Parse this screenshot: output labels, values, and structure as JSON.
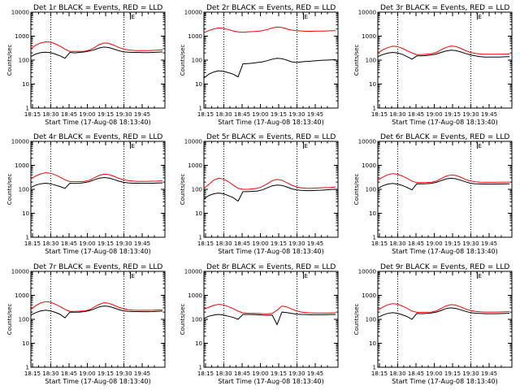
{
  "chart_data": [
    {
      "type": "line",
      "title": "Det 1r BLACK = Events, RED = LLD",
      "xlabel": "Start Time (17-Aug-08 18:13:40)",
      "ylabel": "Counts/sec",
      "yscale": "log",
      "ylim": [
        1,
        10000
      ],
      "x_ticks": [
        "18:15",
        "18:30",
        "18:45",
        "19:00",
        "19:15",
        "19:30",
        "19:45"
      ],
      "y_ticks": [
        "1",
        "10",
        "100",
        "1000",
        "10000"
      ],
      "markers": [
        "18:30",
        "19:30"
      ],
      "flag_label": "E",
      "x": [
        0,
        4,
        8,
        12,
        16,
        20,
        24,
        28,
        32,
        36,
        40,
        44,
        48,
        52,
        56,
        60,
        64,
        68,
        72,
        76,
        80,
        84,
        88,
        92,
        96,
        100,
        104,
        108
      ],
      "series": [
        {
          "name": "Events",
          "color": "#000000",
          "values": [
            140,
            180,
            205,
            215,
            205,
            180,
            150,
            120,
            210,
            200,
            210,
            220,
            240,
            270,
            320,
            350,
            335,
            290,
            250,
            220,
            215,
            210,
            210,
            205,
            205,
            210,
            215,
            220
          ]
        },
        {
          "name": "LLD",
          "color": "#ff0000",
          "values": [
            300,
            420,
            520,
            580,
            560,
            480,
            380,
            290,
            230,
            230,
            230,
            235,
            260,
            330,
            440,
            520,
            500,
            420,
            340,
            290,
            265,
            255,
            250,
            250,
            250,
            255,
            260,
            265
          ]
        }
      ]
    },
    {
      "type": "line",
      "title": "Det 2r BLACK = Events, RED = LLD",
      "xlabel": "Start Time (17-Aug-08 18:13:40)",
      "ylabel": "Counts/sec",
      "yscale": "log",
      "ylim": [
        1,
        10000
      ],
      "x_ticks": [
        "18:15",
        "18:30",
        "18:45",
        "19:00",
        "19:15",
        "19:30",
        "19:45"
      ],
      "y_ticks": [
        "1",
        "10",
        "100",
        "1000",
        "10000"
      ],
      "markers": [
        "18:30",
        "19:30"
      ],
      "flag_label": "E",
      "x": [
        0,
        4,
        8,
        12,
        16,
        20,
        24,
        28,
        32,
        36,
        40,
        44,
        48,
        52,
        56,
        60,
        64,
        68,
        72,
        76,
        80,
        84,
        88,
        92,
        96,
        100,
        104,
        108
      ],
      "series": [
        {
          "name": "Events",
          "color": "#000000",
          "values": [
            18,
            26,
            32,
            36,
            34,
            30,
            26,
            20,
            70,
            72,
            75,
            80,
            85,
            95,
            110,
            120,
            115,
            100,
            85,
            80,
            85,
            88,
            90,
            95,
            98,
            100,
            102,
            105
          ]
        },
        {
          "name": "LLD",
          "color": "#ff0000",
          "values": [
            1400,
            1700,
            2000,
            2200,
            2100,
            1900,
            1650,
            1500,
            1450,
            1500,
            1550,
            1600,
            1700,
            1900,
            2200,
            2400,
            2300,
            2000,
            1800,
            1700,
            1650,
            1600,
            1600,
            1620,
            1640,
            1650,
            1670,
            1700
          ]
        }
      ]
    },
    {
      "type": "line",
      "title": "Det 3r BLACK = Events, RED = LLD",
      "xlabel": "Start Time (17-Aug-08 18:13:40)",
      "ylabel": "Counts/sec",
      "yscale": "log",
      "ylim": [
        1,
        10000
      ],
      "x_ticks": [
        "18:15",
        "18:30",
        "18:45",
        "19:00",
        "19:15",
        "19:30",
        "19:45"
      ],
      "y_ticks": [
        "1",
        "10",
        "100",
        "1000",
        "10000"
      ],
      "markers": [
        "18:30",
        "19:30"
      ],
      "flag_label": "E",
      "x": [
        0,
        4,
        8,
        12,
        16,
        20,
        24,
        28,
        32,
        36,
        40,
        44,
        48,
        52,
        56,
        60,
        64,
        68,
        72,
        76,
        80,
        84,
        88,
        92,
        96,
        100,
        104,
        108
      ],
      "series": [
        {
          "name": "Events",
          "color": "#000000",
          "values": [
            140,
            170,
            195,
            210,
            200,
            175,
            140,
            110,
            150,
            150,
            155,
            165,
            180,
            210,
            240,
            260,
            250,
            220,
            190,
            165,
            150,
            140,
            135,
            135,
            135,
            135,
            138,
            140
          ]
        },
        {
          "name": "LLD",
          "color": "#ff0000",
          "values": [
            200,
            270,
            330,
            380,
            370,
            310,
            250,
            200,
            170,
            170,
            175,
            185,
            210,
            270,
            340,
            390,
            370,
            310,
            250,
            210,
            190,
            180,
            175,
            175,
            175,
            175,
            178,
            180
          ]
        }
      ]
    },
    {
      "type": "line",
      "title": "Det 4r BLACK = Events, RED = LLD",
      "xlabel": "Start Time (17-Aug-08 18:13:40)",
      "ylabel": "Counts/sec",
      "yscale": "log",
      "ylim": [
        1,
        10000
      ],
      "x_ticks": [
        "18:15",
        "18:30",
        "18:45",
        "19:00",
        "19:15",
        "19:30",
        "19:45"
      ],
      "y_ticks": [
        "1",
        "10",
        "100",
        "1000",
        "10000"
      ],
      "markers": [
        "18:30",
        "19:30"
      ],
      "flag_label": "E",
      "x": [
        0,
        4,
        8,
        12,
        16,
        20,
        24,
        28,
        32,
        36,
        40,
        44,
        48,
        52,
        56,
        60,
        64,
        68,
        72,
        76,
        80,
        84,
        88,
        92,
        96,
        100,
        104,
        108
      ],
      "series": [
        {
          "name": "Events",
          "color": "#000000",
          "values": [
            120,
            150,
            170,
            180,
            170,
            150,
            130,
            110,
            180,
            175,
            180,
            190,
            210,
            250,
            290,
            310,
            295,
            260,
            220,
            195,
            185,
            180,
            180,
            178,
            178,
            180,
            182,
            185
          ]
        },
        {
          "name": "LLD",
          "color": "#ff0000",
          "values": [
            270,
            360,
            440,
            490,
            470,
            400,
            320,
            250,
            210,
            210,
            210,
            215,
            240,
            300,
            380,
            430,
            410,
            350,
            290,
            250,
            230,
            220,
            215,
            215,
            215,
            218,
            220,
            225
          ]
        }
      ]
    },
    {
      "type": "line",
      "title": "Det 5r BLACK = Events, RED = LLD",
      "xlabel": "Start Time (17-Aug-08 18:13:40)",
      "ylabel": "Counts/sec",
      "yscale": "log",
      "ylim": [
        1,
        10000
      ],
      "x_ticks": [
        "18:15",
        "18:30",
        "18:45",
        "19:00",
        "19:15",
        "19:30",
        "19:45"
      ],
      "y_ticks": [
        "1",
        "10",
        "100",
        "1000",
        "10000"
      ],
      "markers": [
        "18:30",
        "19:30"
      ],
      "flag_label": "E",
      "x": [
        0,
        4,
        8,
        12,
        16,
        20,
        24,
        28,
        32,
        36,
        40,
        44,
        48,
        52,
        56,
        60,
        64,
        68,
        72,
        76,
        80,
        84,
        88,
        92,
        96,
        100,
        104,
        108
      ],
      "series": [
        {
          "name": "Events",
          "color": "#000000",
          "values": [
            40,
            55,
            65,
            70,
            65,
            55,
            45,
            32,
            80,
            80,
            82,
            85,
            95,
            115,
            140,
            150,
            145,
            125,
            105,
            95,
            90,
            88,
            88,
            90,
            92,
            95,
            98,
            100
          ]
        },
        {
          "name": "LLD",
          "color": "#ff0000",
          "values": [
            110,
            160,
            240,
            290,
            270,
            210,
            150,
            110,
            100,
            100,
            105,
            110,
            130,
            170,
            230,
            260,
            240,
            190,
            150,
            125,
            115,
            110,
            110,
            112,
            115,
            118,
            120,
            125
          ]
        }
      ]
    },
    {
      "type": "line",
      "title": "Det 6r BLACK = Events, RED = LLD",
      "xlabel": "Start Time (17-Aug-08 18:13:40)",
      "ylabel": "Counts/sec",
      "yscale": "log",
      "ylim": [
        1,
        10000
      ],
      "x_ticks": [
        "18:15",
        "18:30",
        "18:45",
        "19:00",
        "19:15",
        "19:30",
        "19:45"
      ],
      "y_ticks": [
        "1",
        "10",
        "100",
        "1000",
        "10000"
      ],
      "markers": [
        "18:30",
        "19:30"
      ],
      "flag_label": "E",
      "x": [
        0,
        4,
        8,
        12,
        16,
        20,
        24,
        28,
        32,
        36,
        40,
        44,
        48,
        52,
        56,
        60,
        64,
        68,
        72,
        76,
        80,
        84,
        88,
        92,
        96,
        100,
        104,
        108
      ],
      "series": [
        {
          "name": "Events",
          "color": "#000000",
          "values": [
            110,
            140,
            165,
            175,
            165,
            145,
            120,
            95,
            170,
            170,
            172,
            178,
            195,
            230,
            270,
            290,
            275,
            240,
            205,
            180,
            170,
            168,
            165,
            165,
            165,
            166,
            168,
            170
          ]
        },
        {
          "name": "LLD",
          "color": "#ff0000",
          "values": [
            240,
            320,
            400,
            450,
            430,
            360,
            290,
            220,
            190,
            190,
            192,
            198,
            220,
            280,
            350,
            400,
            380,
            320,
            260,
            225,
            205,
            198,
            195,
            195,
            195,
            197,
            198,
            200
          ]
        }
      ]
    },
    {
      "type": "line",
      "title": "Det 7r BLACK = Events, RED = LLD",
      "xlabel": "Start Time (17-Aug-08 18:13:40)",
      "ylabel": "Counts/sec",
      "yscale": "log",
      "ylim": [
        1,
        10000
      ],
      "x_ticks": [
        "18:15",
        "18:30",
        "18:45",
        "19:00",
        "19:15",
        "19:30",
        "19:45"
      ],
      "y_ticks": [
        "1",
        "10",
        "100",
        "1000",
        "10000"
      ],
      "markers": [
        "18:30",
        "19:30"
      ],
      "flag_label": "E",
      "x": [
        0,
        4,
        8,
        12,
        16,
        20,
        24,
        28,
        32,
        36,
        40,
        44,
        48,
        52,
        56,
        60,
        64,
        68,
        72,
        76,
        80,
        84,
        88,
        92,
        96,
        100,
        104,
        108
      ],
      "series": [
        {
          "name": "Events",
          "color": "#000000",
          "values": [
            150,
            190,
            225,
            240,
            225,
            195,
            160,
            115,
            200,
            198,
            200,
            210,
            230,
            270,
            330,
            360,
            345,
            300,
            255,
            225,
            215,
            210,
            210,
            208,
            208,
            210,
            215,
            220
          ]
        },
        {
          "name": "LLD",
          "color": "#ff0000",
          "values": [
            260,
            370,
            480,
            550,
            520,
            430,
            340,
            260,
            215,
            215,
            218,
            225,
            250,
            320,
            420,
            490,
            470,
            390,
            320,
            275,
            250,
            240,
            238,
            238,
            238,
            240,
            245,
            250
          ]
        }
      ]
    },
    {
      "type": "line",
      "title": "Det 8r BLACK = Events, RED = LLD",
      "xlabel": "Start Time (17-Aug-08 18:13:40)",
      "ylabel": "Counts/sec",
      "yscale": "log",
      "ylim": [
        1,
        10000
      ],
      "x_ticks": [
        "18:15",
        "18:30",
        "18:45",
        "19:00",
        "19:15",
        "19:30",
        "19:45"
      ],
      "y_ticks": [
        "1",
        "10",
        "100",
        "1000",
        "10000"
      ],
      "markers": [
        "18:30",
        "19:30"
      ],
      "flag_label": "E",
      "x": [
        0,
        4,
        8,
        12,
        16,
        20,
        24,
        28,
        32,
        36,
        40,
        44,
        48,
        52,
        56,
        60,
        64,
        68,
        72,
        76,
        80,
        84,
        88,
        92,
        96,
        100,
        104,
        108
      ],
      "series": [
        {
          "name": "Events",
          "color": "#000000",
          "values": [
            110,
            135,
            150,
            160,
            150,
            135,
            120,
            100,
            160,
            160,
            158,
            155,
            150,
            148,
            150,
            60,
            200,
            190,
            175,
            165,
            160,
            158,
            155,
            155,
            155,
            156,
            158,
            160
          ]
        },
        {
          "name": "LLD",
          "color": "#ff0000",
          "values": [
            260,
            320,
            380,
            420,
            400,
            340,
            280,
            220,
            185,
            180,
            178,
            175,
            172,
            170,
            175,
            240,
            360,
            330,
            270,
            225,
            200,
            190,
            185,
            182,
            182,
            183,
            185,
            188
          ]
        }
      ]
    },
    {
      "type": "line",
      "title": "Det 9r BLACK = Events, RED = LLD",
      "xlabel": "Start Time (17-Aug-08 18:13:40)",
      "ylabel": "Counts/sec",
      "yscale": "log",
      "ylim": [
        1,
        10000
      ],
      "x_ticks": [
        "18:15",
        "18:30",
        "18:45",
        "19:00",
        "19:15",
        "19:30",
        "19:45"
      ],
      "y_ticks": [
        "1",
        "10",
        "100",
        "1000",
        "10000"
      ],
      "markers": [
        "18:30",
        "19:30"
      ],
      "flag_label": "E",
      "x": [
        0,
        4,
        8,
        12,
        16,
        20,
        24,
        28,
        32,
        36,
        40,
        44,
        48,
        52,
        56,
        60,
        64,
        68,
        72,
        76,
        80,
        84,
        88,
        92,
        96,
        100,
        104,
        108
      ],
      "series": [
        {
          "name": "Events",
          "color": "#000000",
          "values": [
            120,
            150,
            175,
            190,
            178,
            155,
            130,
            100,
            175,
            172,
            175,
            182,
            200,
            235,
            280,
            300,
            285,
            250,
            215,
            190,
            180,
            175,
            172,
            172,
            172,
            173,
            175,
            178
          ]
        },
        {
          "name": "LLD",
          "color": "#ff0000",
          "values": [
            240,
            320,
            400,
            450,
            430,
            360,
            290,
            220,
            195,
            195,
            197,
            200,
            225,
            285,
            360,
            410,
            390,
            330,
            270,
            235,
            215,
            205,
            200,
            200,
            200,
            202,
            205,
            208
          ]
        }
      ]
    }
  ]
}
